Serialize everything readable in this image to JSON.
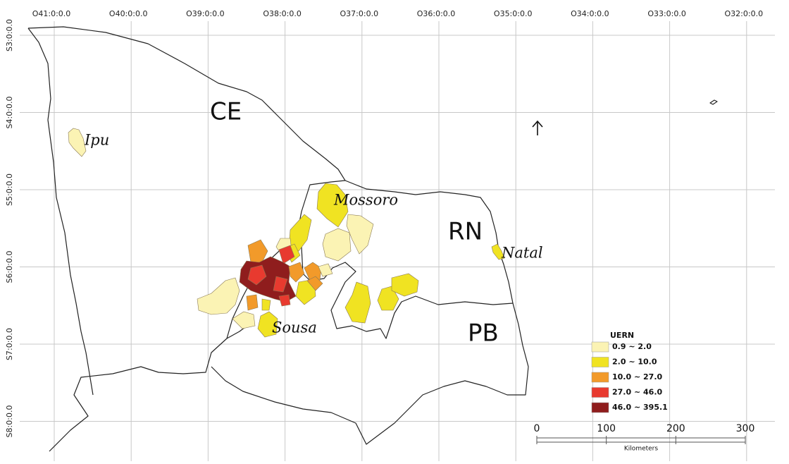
{
  "grid": {
    "top_labels": [
      "O41:0:0.0",
      "O40:0:0.0",
      "O39:0:0.0",
      "O38:0:0.0",
      "O37:0:0.0",
      "O36:0:0.0",
      "O35:0:0.0",
      "O34:0:0.0",
      "O33:0:0.0",
      "O32:0:0.0"
    ],
    "left_labels": [
      "S3:0:0.0",
      "S4:0:0.0",
      "S5:0:0.0",
      "S6:0:0.0",
      "S7:0:0.0",
      "S8:0:0.0"
    ]
  },
  "states": [
    "CE",
    "RN",
    "PB"
  ],
  "cities": [
    "Ipu",
    "Mossoro",
    "Natal",
    "Sousa"
  ],
  "legend": {
    "title": "UERN",
    "classes": [
      {
        "label": "0.9 ~ 2.0",
        "color": "#fbf3b4"
      },
      {
        "label": "2.0 ~ 10.0",
        "color": "#f0e322"
      },
      {
        "label": "10.0 ~ 27.0",
        "color": "#f29a2a"
      },
      {
        "label": "27.0 ~ 46.0",
        "color": "#e83a2f"
      },
      {
        "label": "46.0 ~ 395.1",
        "color": "#8f1d1d"
      }
    ]
  },
  "scale_bar": {
    "ticks": [
      0,
      100,
      200,
      300
    ],
    "unit": "Kilometers"
  }
}
